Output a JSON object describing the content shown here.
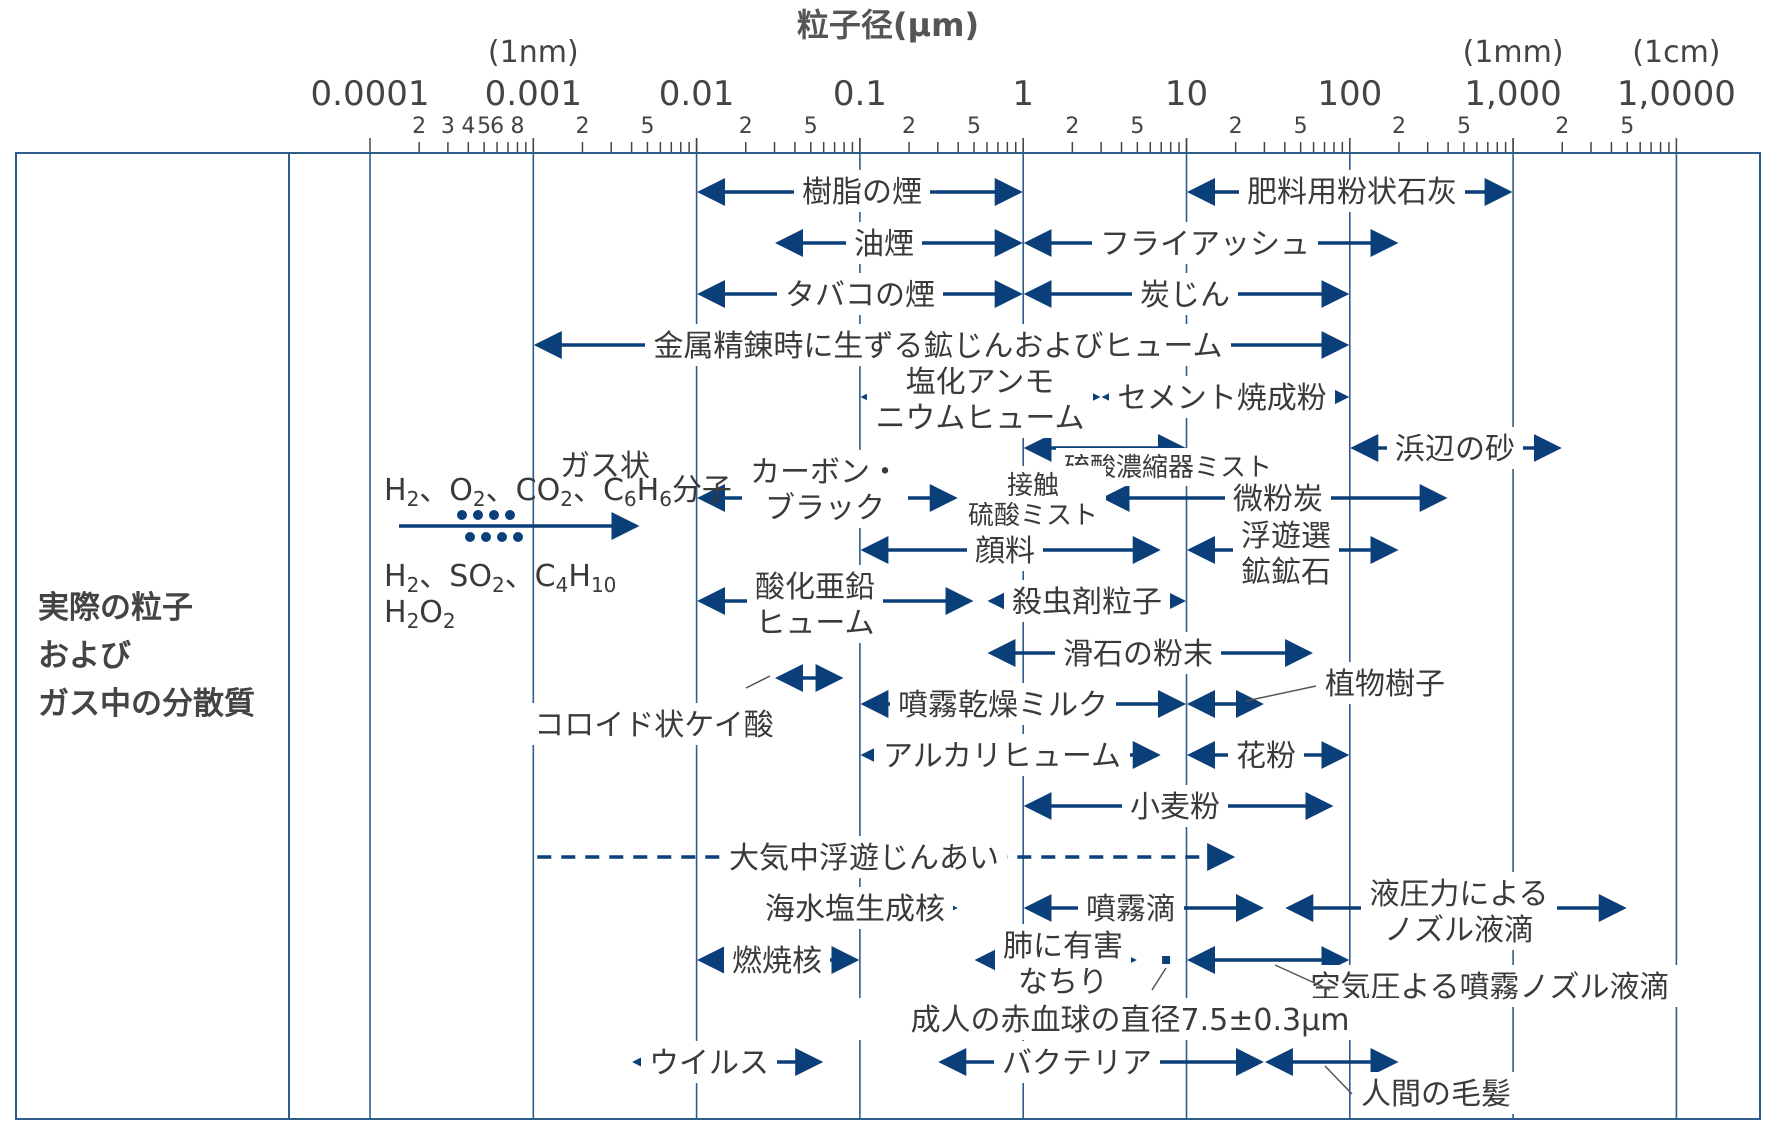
{
  "title": "粒子径(μm)",
  "category_label": [
    "実際の粒子",
    "および",
    "ガス中の分散質"
  ],
  "colors": {
    "line": "#1f4e79",
    "arrow": "#0b3f7a",
    "text": "#3a3a3a",
    "frame": "#2d5d8a"
  },
  "axis": {
    "scale": "log",
    "range": [
      0.0001,
      10000
    ],
    "major_ticks": [
      {
        "value": 0.0001,
        "label": "0.0001"
      },
      {
        "value": 0.001,
        "label": "0.001"
      },
      {
        "value": 0.01,
        "label": "0.01"
      },
      {
        "value": 0.1,
        "label": "0.1"
      },
      {
        "value": 1,
        "label": "1"
      },
      {
        "value": 10,
        "label": "10"
      },
      {
        "value": 100,
        "label": "100"
      },
      {
        "value": 1000,
        "label": "1,000"
      },
      {
        "value": 10000,
        "label": "1,0000"
      }
    ],
    "unit_notes": [
      {
        "value": 0.001,
        "label": "(1nm)"
      },
      {
        "value": 1000,
        "label": "(1mm)"
      },
      {
        "value": 10000,
        "label": "(1cm)"
      }
    ],
    "minor_first_decade_labels": [
      {
        "value": 0.0002,
        "label": "2"
      },
      {
        "value": 0.0003,
        "label": "3"
      },
      {
        "value": 0.0004,
        "label": "4"
      },
      {
        "value": 0.0005,
        "label": "5"
      },
      {
        "value": 0.0006,
        "label": "6"
      },
      {
        "value": 0.0008,
        "label": "8"
      }
    ],
    "minor_labels": [
      "2",
      "5"
    ]
  },
  "chart_data": {
    "type": "range",
    "items": [
      {
        "label": "樹脂の煙",
        "from": 0.01,
        "to": 1
      },
      {
        "label": "肥料用粉状石灰",
        "from": 10,
        "to": 1000
      },
      {
        "label": "油煙",
        "from": 0.03,
        "to": 1
      },
      {
        "label": "フライアッシュ",
        "from": 1,
        "to": 200
      },
      {
        "label": "タバコの煙",
        "from": 0.01,
        "to": 1
      },
      {
        "label": "炭じん",
        "from": 1,
        "to": 100
      },
      {
        "label": "金属精錬時に生ずる鉱じんおよびヒューム",
        "from": 0.001,
        "to": 100
      },
      {
        "label": "塩化アンモニウムヒューム",
        "from": 0.1,
        "to": 3
      },
      {
        "label": "セメント焼成粉",
        "from": 3,
        "to": 100
      },
      {
        "label": "浜辺の砂",
        "from": 100,
        "to": 2000
      },
      {
        "label": "硫酸濃縮器ミスト",
        "from": 1,
        "to": 10
      },
      {
        "label": "ガス状分子",
        "from": 0.00015,
        "to": 0.0016
      },
      {
        "label": "カーボン・ブラック",
        "from": 0.01,
        "to": 0.4
      },
      {
        "label": "接触硫酸ミスト",
        "from": 0.5,
        "to": 3
      },
      {
        "label": "微粉炭",
        "from": 3,
        "to": 400
      },
      {
        "label": "顔料",
        "from": 0.1,
        "to": 7
      },
      {
        "label": "浮遊選鉱鉱石",
        "from": 10,
        "to": 200
      },
      {
        "label": "酸化亜鉛ヒューム",
        "from": 0.01,
        "to": 0.5
      },
      {
        "label": "殺虫剤粒子",
        "from": 0.6,
        "to": 10
      },
      {
        "label": "滑石の粉末",
        "from": 0.6,
        "to": 60
      },
      {
        "label": "コロイド状ケイ酸",
        "from": 0.03,
        "to": 0.08
      },
      {
        "label": "噴霧乾燥ミルク",
        "from": 0.1,
        "to": 10
      },
      {
        "label": "植物樹子",
        "from": 10,
        "to": 30
      },
      {
        "label": "アルカリヒューム",
        "from": 0.1,
        "to": 7
      },
      {
        "label": "花粉",
        "from": 10,
        "to": 100
      },
      {
        "label": "小麦粉",
        "from": 1,
        "to": 80
      },
      {
        "label": "大気中浮遊じんあい",
        "from": 0.001,
        "to": 20
      },
      {
        "label": "海水塩生成核",
        "from": 0.03,
        "to": 0.4
      },
      {
        "label": "噴霧滴",
        "from": 1,
        "to": 30
      },
      {
        "label": "液圧力によるノズル液滴",
        "from": 40,
        "to": 5000
      },
      {
        "label": "燃焼核",
        "from": 0.01,
        "to": 0.1
      },
      {
        "label": "肺に有害なちり",
        "from": 0.5,
        "to": 5
      },
      {
        "label": "空気圧よる噴霧ノズル液滴",
        "from": 10,
        "to": 100
      },
      {
        "label": "成人の赤血球の直径7.5±0.3μm",
        "from": 7.5,
        "to": 7.5
      },
      {
        "label": "ウイルス",
        "from": 0.004,
        "to": 0.06
      },
      {
        "label": "バクテリア",
        "from": 0.3,
        "to": 30
      },
      {
        "label": "人間の毛髪",
        "from": 30,
        "to": 200
      }
    ]
  },
  "annotations": {
    "gas_top": "ガス状",
    "gas_mol": [
      "H",
      "2",
      "、O",
      "2",
      "、CO",
      "2",
      "、C",
      "6",
      "H",
      "6",
      "分子"
    ],
    "gas_bottom1": [
      "H",
      "2",
      "、SO",
      "2",
      "、C",
      "4",
      "H",
      "10"
    ],
    "gas_bottom2": [
      "H",
      "2",
      "O",
      "2"
    ]
  }
}
